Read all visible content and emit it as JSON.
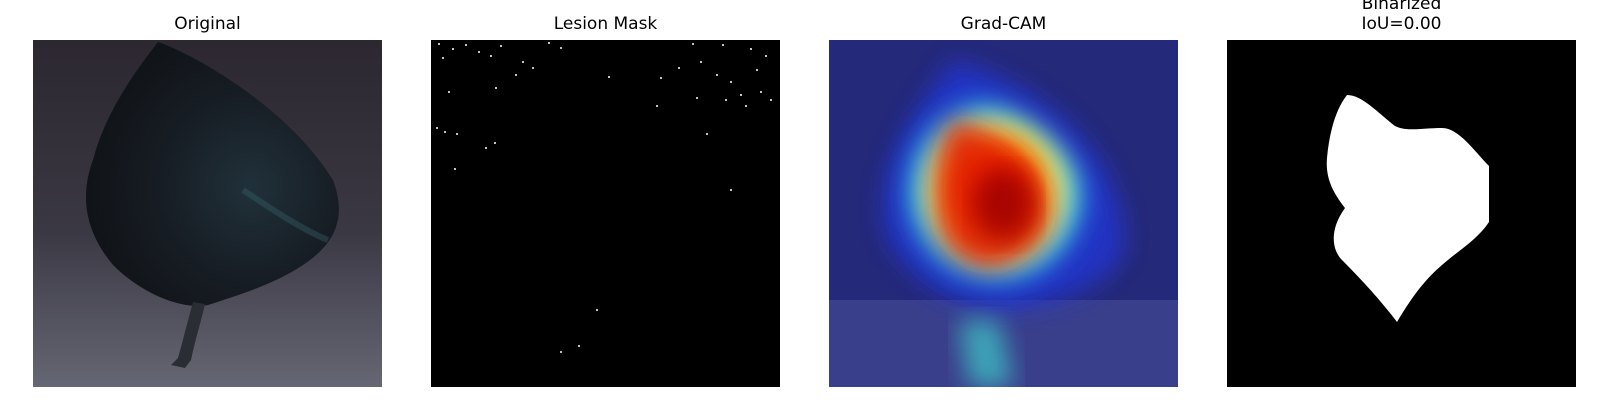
{
  "panels": [
    {
      "title": "Original"
    },
    {
      "title": "Lesion Mask"
    },
    {
      "title": "Grad-CAM"
    },
    {
      "title_line1": "Binarized",
      "title_line2": "IoU=0.00"
    }
  ],
  "colors": {
    "leaf_dark": "#15191f",
    "background_top": "#2a2630",
    "background_bottom": "#5b5c68",
    "mask_background": "#000000",
    "mask_foreground": "#ffffff",
    "heatmap_low": "#1b1f8f",
    "heatmap_mid": "#20e0d0",
    "heatmap_high": "#ff1e00"
  }
}
